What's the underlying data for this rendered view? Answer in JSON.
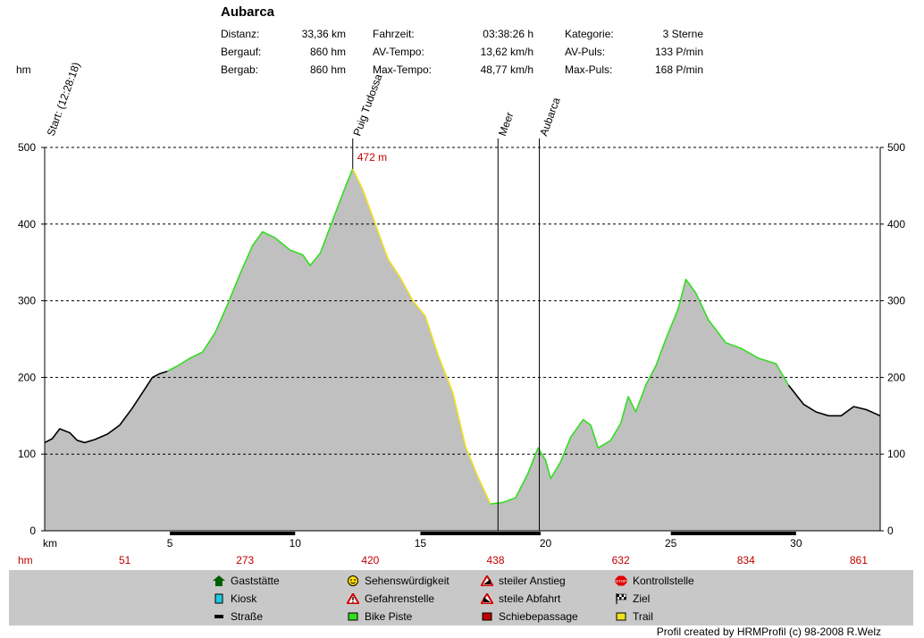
{
  "header": {
    "title": "Aubarca",
    "stats": [
      {
        "label": "Distanz:",
        "value": "33,36 km"
      },
      {
        "label": "Bergauf:",
        "value": "860 hm"
      },
      {
        "label": "Bergab:",
        "value": "860 hm"
      },
      {
        "label": "Fahrzeit:",
        "value": "03:38:26 h"
      },
      {
        "label": "AV-Tempo:",
        "value": "13,62 km/h"
      },
      {
        "label": "Max-Tempo:",
        "value": "48,77 km/h"
      },
      {
        "label": "Kategorie:",
        "value": "3 Sterne"
      },
      {
        "label": "AV-Puls:",
        "value": "133 P/min"
      },
      {
        "label": "Max-Puls:",
        "value": "168 P/min"
      }
    ]
  },
  "chart_data": {
    "type": "area",
    "ylabel": "hm",
    "xlabel": "km",
    "xlim": [
      0,
      33.36
    ],
    "ylim": [
      0,
      500
    ],
    "yticks": [
      0,
      100,
      200,
      300,
      400,
      500
    ],
    "xticks": [
      5,
      10,
      15,
      20,
      25,
      30
    ],
    "grid": true,
    "profile": [
      [
        0,
        115
      ],
      [
        0.3,
        120
      ],
      [
        0.6,
        133
      ],
      [
        1.0,
        128
      ],
      [
        1.3,
        118
      ],
      [
        1.6,
        115
      ],
      [
        2.0,
        119
      ],
      [
        2.5,
        126
      ],
      [
        3.0,
        138
      ],
      [
        3.5,
        160
      ],
      [
        4.0,
        185
      ],
      [
        4.3,
        200
      ],
      [
        4.6,
        205
      ],
      [
        4.9,
        208
      ],
      [
        5.3,
        215
      ],
      [
        5.8,
        225
      ],
      [
        6.3,
        233
      ],
      [
        6.8,
        258
      ],
      [
        7.3,
        295
      ],
      [
        7.8,
        335
      ],
      [
        8.3,
        372
      ],
      [
        8.7,
        390
      ],
      [
        9.2,
        382
      ],
      [
        9.8,
        366
      ],
      [
        10.3,
        360
      ],
      [
        10.6,
        346
      ],
      [
        11.0,
        362
      ],
      [
        11.5,
        405
      ],
      [
        12.0,
        448
      ],
      [
        12.3,
        472
      ],
      [
        12.7,
        445
      ],
      [
        13.2,
        400
      ],
      [
        13.7,
        355
      ],
      [
        14.2,
        330
      ],
      [
        14.7,
        300
      ],
      [
        15.2,
        280
      ],
      [
        15.7,
        230
      ],
      [
        16.3,
        180
      ],
      [
        16.8,
        110
      ],
      [
        17.3,
        70
      ],
      [
        17.8,
        35
      ],
      [
        18.3,
        37
      ],
      [
        18.8,
        43
      ],
      [
        19.3,
        75
      ],
      [
        19.7,
        108
      ],
      [
        20.0,
        92
      ],
      [
        20.2,
        68
      ],
      [
        20.6,
        90
      ],
      [
        21.0,
        122
      ],
      [
        21.5,
        145
      ],
      [
        21.8,
        138
      ],
      [
        22.1,
        108
      ],
      [
        22.6,
        118
      ],
      [
        23.0,
        140
      ],
      [
        23.3,
        175
      ],
      [
        23.6,
        155
      ],
      [
        24.0,
        190
      ],
      [
        24.4,
        215
      ],
      [
        24.8,
        250
      ],
      [
        25.3,
        290
      ],
      [
        25.6,
        328
      ],
      [
        26.0,
        310
      ],
      [
        26.5,
        275
      ],
      [
        27.2,
        245
      ],
      [
        27.8,
        238
      ],
      [
        28.5,
        225
      ],
      [
        29.2,
        218
      ],
      [
        29.7,
        190
      ],
      [
        30.3,
        165
      ],
      [
        30.8,
        155
      ],
      [
        31.3,
        150
      ],
      [
        31.8,
        150
      ],
      [
        32.3,
        162
      ],
      [
        32.8,
        158
      ],
      [
        33.36,
        150
      ]
    ],
    "surface_segments": [
      {
        "type": "Straße",
        "from": 0,
        "to": 4.9
      },
      {
        "type": "Bike Piste",
        "from": 4.9,
        "to": 12.3
      },
      {
        "type": "Trail",
        "from": 12.3,
        "to": 17.8
      },
      {
        "type": "Bike Piste",
        "from": 17.8,
        "to": 29.7
      },
      {
        "type": "Straße",
        "from": 29.7,
        "to": 33.36
      }
    ],
    "bottom_bar_segments": [
      [
        5,
        10
      ],
      [
        15,
        19.8
      ],
      [
        25,
        30
      ]
    ],
    "markers": [
      {
        "label": "Start: (12:28:18)",
        "km": 0
      },
      {
        "label": "Puig Tudossa",
        "km": 12.3
      },
      {
        "label": "Meer",
        "km": 18.1
      },
      {
        "label": "Aubarca",
        "km": 19.75
      }
    ],
    "peak_annotation": {
      "km": 12.3,
      "label": "472 m"
    },
    "hm_row": [
      {
        "km": 3.2,
        "value": "51"
      },
      {
        "km": 8.0,
        "value": "273"
      },
      {
        "km": 13.0,
        "value": "420"
      },
      {
        "km": 18.0,
        "value": "438"
      },
      {
        "km": 23.0,
        "value": "632"
      },
      {
        "km": 28.0,
        "value": "834"
      },
      {
        "km": 32.5,
        "value": "861"
      }
    ],
    "hm_row_label": "hm",
    "colors": {
      "area": "#c0c0c0",
      "Straße": "#000000",
      "Bike Piste": "#33dd22",
      "Trail": "#f0e020",
      "hm_text": "#c00000"
    }
  },
  "legend": [
    {
      "icon": "gaststaette-icon",
      "label": "Gaststätte"
    },
    {
      "icon": "kiosk-icon",
      "label": "Kiosk"
    },
    {
      "icon": "strasse-icon",
      "label": "Straße"
    },
    {
      "icon": "sehenswuerdigkeit-icon",
      "label": "Sehenswürdigkeit"
    },
    {
      "icon": "gefahrenstelle-icon",
      "label": "Gefahrenstelle"
    },
    {
      "icon": "bike-piste-icon",
      "label": "Bike Piste"
    },
    {
      "icon": "steiler-anstieg-icon",
      "label": "steiler Anstieg"
    },
    {
      "icon": "steile-abfahrt-icon",
      "label": "steile Abfahrt"
    },
    {
      "icon": "schiebepassage-icon",
      "label": "Schiebepassage"
    },
    {
      "icon": "kontrollstelle-icon",
      "label": "Kontrollstelle"
    },
    {
      "icon": "ziel-icon",
      "label": "Ziel"
    },
    {
      "icon": "trail-icon",
      "label": "Trail"
    }
  ],
  "footer": "Profil created by HRMProfil (c) 98-2008 R.Welz"
}
